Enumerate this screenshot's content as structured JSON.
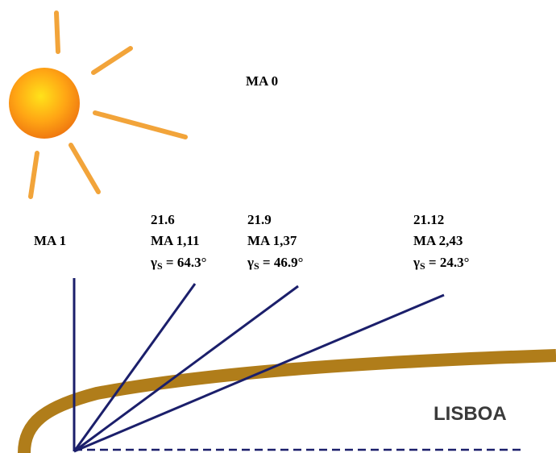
{
  "sun_label": "MA 0",
  "vertical_label": "MA 1",
  "positions": [
    {
      "date": "21.6",
      "air_mass": "MA 1,11",
      "angle_symbol": "γ",
      "angle_subscript": "S",
      "angle_text": " = 64.3°"
    },
    {
      "date": "21.9",
      "air_mass": "MA 1,37",
      "angle_symbol": "γ",
      "angle_subscript": "S",
      "angle_text": " = 46.9°"
    },
    {
      "date": "21.12",
      "air_mass": "MA 2,43",
      "angle_symbol": "γ",
      "angle_subscript": "S",
      "angle_text": " = 24.3°"
    }
  ],
  "place": "LISBOA"
}
